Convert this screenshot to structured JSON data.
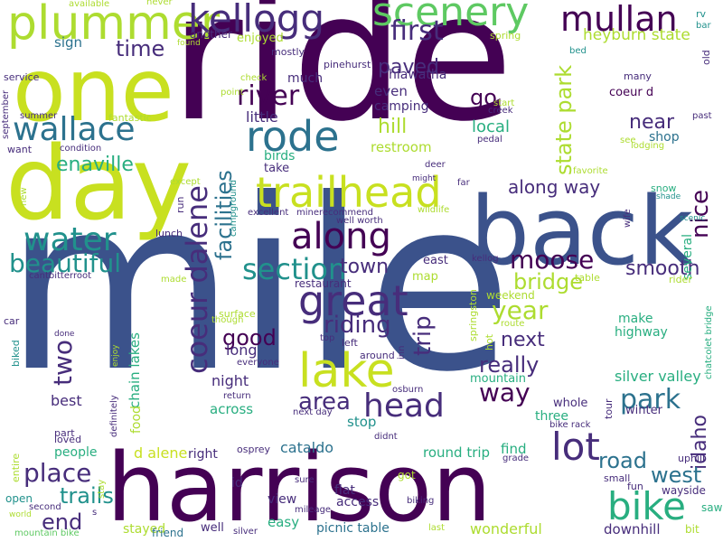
{
  "words": {
    "mile": "mile",
    "ride": "ride",
    "harrison": "harrison",
    "back": "back",
    "day": "day",
    "one": "one",
    "plummer": "plummer",
    "kellogg": "kellogg",
    "scenery": "scenery",
    "mullan": "mullan",
    "wallace": "wallace",
    "rode": "rode",
    "trailhead": "trailhead",
    "water": "water",
    "along": "along",
    "beautiful": "beautiful",
    "section": "section",
    "lake": "lake",
    "great": "great",
    "coeur_dalene": "coeur dalene",
    "bike": "bike",
    "lot": "lot",
    "head": "head",
    "time": "time",
    "first": "first",
    "heyburn_state": "heyburn state",
    "state_park": "state park",
    "river": "river",
    "paved": "paved",
    "go": "go",
    "moose": "moose",
    "smooth": "smooth",
    "bridge": "bridge",
    "year": "year",
    "next": "next",
    "really": "really",
    "park": "park",
    "idaho": "idaho",
    "west": "west",
    "road": "road",
    "enaville": "enaville",
    "two": "two",
    "place": "place",
    "trails": "trails",
    "end": "end",
    "good": "good",
    "riding": "riding",
    "trip": "trip",
    "area": "area",
    "way": "way",
    "nice": "nice",
    "near": "near",
    "along_way": "along way",
    "town": "town",
    "facilities": "facilities",
    "hill": "hill",
    "restroom": "restroom",
    "local": "local",
    "shop": "shop",
    "even": "even",
    "camping": "camping",
    "little": "little",
    "hiawatha": "hiawatha",
    "pinehurst": "pinehurst",
    "coeur_d": "coeur d",
    "sign": "sign",
    "another": "another",
    "enjoyed": "enjoyed",
    "mostly": "mostly",
    "service": "service",
    "much": "much",
    "check": "check",
    "point": "point",
    "fantastic": "fantastic",
    "summer": "summer",
    "condition": "condition",
    "want": "want",
    "september": "september",
    "available": "available",
    "never": "never",
    "found": "found",
    "spring": "spring",
    "bed": "bed",
    "rv": "rv",
    "bar": "bar",
    "old": "old",
    "many": "many",
    "past": "past",
    "start": "start",
    "creek": "creek",
    "pedal": "pedal",
    "lodging": "lodging",
    "see": "see",
    "favorite": "favorite",
    "deer": "deer",
    "might": "might",
    "far": "far",
    "snow": "snow",
    "shade": "shade",
    "scenic": "scenic",
    "wife": "wife",
    "several": "several",
    "birds": "birds",
    "take": "take",
    "campground": "campground",
    "except": "except",
    "excellent": "excellent",
    "minerecommend": "minerecommend",
    "well_worth": "well worth",
    "wildlife": "wildlife",
    "run": "run",
    "lunch": "lunch",
    "new": "new",
    "east": "east",
    "kellog": "kellog",
    "map": "map",
    "table": "table",
    "rider": "rider",
    "cantbitterroot": "cantbitterroot",
    "made": "made",
    "restaurant": "restaurant",
    "weekend": "weekend",
    "surface": "surface",
    "though": "though",
    "car": "car",
    "chain_lakes": "chain lakes",
    "long": "long",
    "top": "top",
    "left": "left",
    "springston": "springston",
    "hot": "hot",
    "route": "route",
    "make": "make",
    "highway": "highway",
    "chatcolet_bridge": "chatcolet bridge",
    "done": "done",
    "enjoy": "enjoy",
    "everyone": "everyone",
    "around": "around",
    "inn": "inn",
    "biked": "biked",
    "night": "night",
    "across": "across",
    "return": "return",
    "osburn": "osburn",
    "mountain": "mountain",
    "silver_valley": "silver valley",
    "whole": "whole",
    "tour": "tour",
    "winter": "winter",
    "best": "best",
    "food": "food",
    "definitely": "definitely",
    "next_day": "next day",
    "stop": "stop",
    "three": "three",
    "bike_rack": "bike rack",
    "part": "part",
    "loved": "loved",
    "didnt": "didnt",
    "people": "people",
    "d_alene": "d alene",
    "right": "right",
    "osprey": "osprey",
    "cataldo": "cataldo",
    "round_trip": "round trip",
    "find": "find",
    "uphill": "uphill",
    "entire": "entire",
    "stay": "stay",
    "id": "id",
    "sure": "sure",
    "grade": "grade",
    "got": "got",
    "small": "small",
    "wayside": "wayside",
    "open": "open",
    "second": "second",
    "world": "world",
    "view": "view",
    "flat": "flat",
    "access": "access",
    "fun": "fun",
    "saw": "saw",
    "s": "s",
    "biking": "biking",
    "easy": "easy",
    "mileage": "mileage",
    "stayed": "stayed",
    "picnic_table": "picnic table",
    "wonderful": "wonderful",
    "downhill": "downhill",
    "bit": "bit",
    "mountain_bike": "mountain bike",
    "friend": "friend",
    "well": "well",
    "silver": "silver",
    "last": "last"
  }
}
